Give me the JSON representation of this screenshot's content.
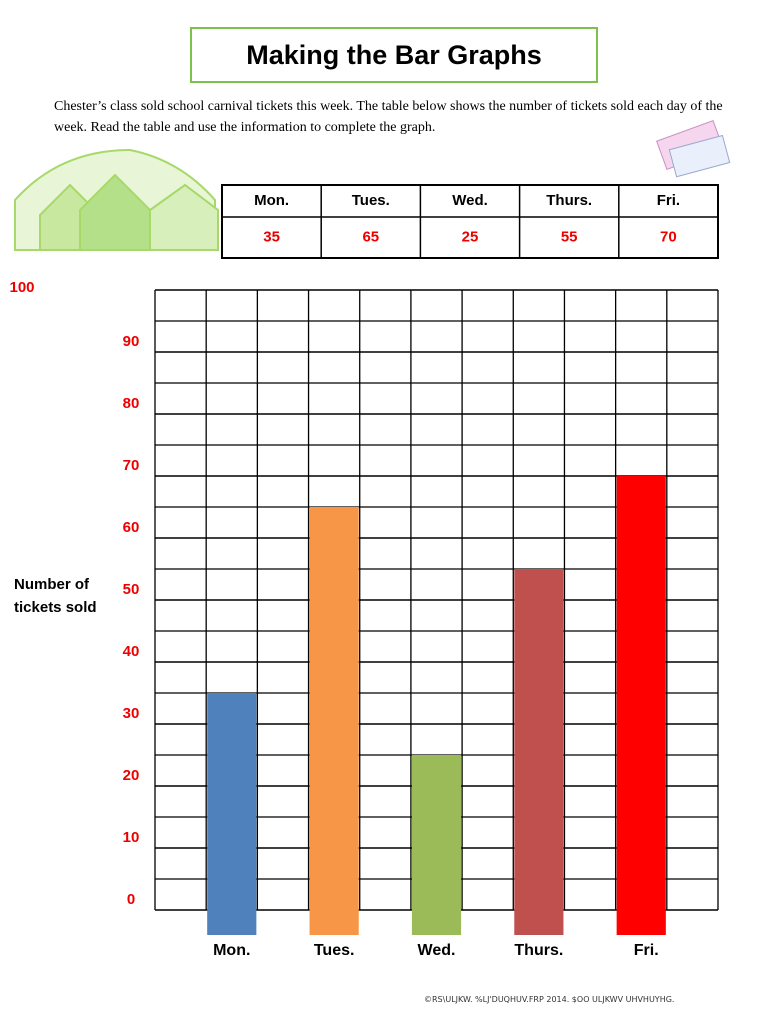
{
  "header": {
    "title": "Making the Bar Graphs"
  },
  "instructions": "Chester’s class sold school carnival tickets this week. The table below shows the number of tickets sold each day of the week. Read the table and use the information to complete the graph.",
  "table": {
    "headers": [
      "Mon.",
      "Tues.",
      "Wed.",
      "Thurs.",
      "Fri."
    ],
    "values": [
      35,
      65,
      25,
      55,
      70
    ]
  },
  "chart_data": {
    "type": "bar",
    "y_label": "Number of tickets sold",
    "categories": [
      "Mon.",
      "Tues.",
      "Wed.",
      "Thurs.",
      "Fri."
    ],
    "values": [
      35,
      65,
      25,
      55,
      70
    ],
    "colors": [
      "#4f81bd",
      "#f79646",
      "#9bbb59",
      "#c0504d",
      "#ff0000"
    ],
    "ylim": [
      0,
      100
    ],
    "yticks": [
      0,
      10,
      20,
      30,
      40,
      50,
      60,
      70,
      80,
      90,
      100
    ],
    "grid": true
  },
  "footer": "©RS\\ULJKW. %LJ'DUQHUV.FRP 2014. $OO ULJKWV UHVHUYHG."
}
